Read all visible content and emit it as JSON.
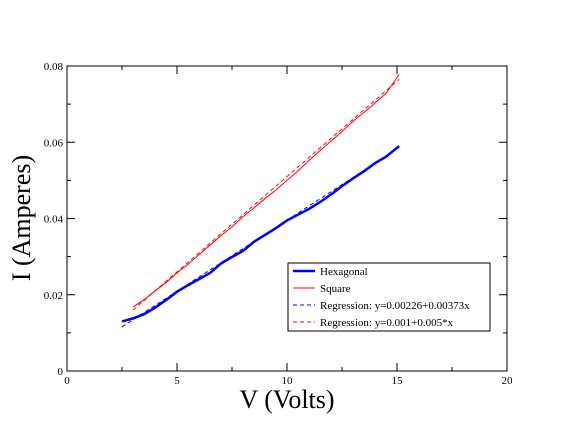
{
  "chart_data": {
    "type": "line",
    "title": "",
    "xlabel": "V (Volts)",
    "ylabel": "I (Amperes)",
    "xlim": [
      0,
      20
    ],
    "ylim": [
      0,
      0.08
    ],
    "x_ticks": [
      0,
      5,
      10,
      15,
      20
    ],
    "x_tick_labels": [
      "0",
      "5",
      "10",
      "15",
      "20"
    ],
    "y_ticks": [
      0,
      0.02,
      0.04,
      0.06,
      0.08
    ],
    "y_tick_labels": [
      "0",
      "0.02",
      "0.04",
      "0.06",
      "0.08"
    ],
    "grid": false,
    "legend_position": "lower-right",
    "series": [
      {
        "name": "Hexagonal",
        "style": "solid",
        "color": "#0000ff",
        "points": [
          [
            2.5,
            0.013
          ],
          [
            3,
            0.0138
          ],
          [
            3.5,
            0.0149
          ],
          [
            4,
            0.0166
          ],
          [
            4.5,
            0.0186
          ],
          [
            5,
            0.0208
          ],
          [
            5.5,
            0.0225
          ],
          [
            6,
            0.0241
          ],
          [
            6.5,
            0.0257
          ],
          [
            7,
            0.0282
          ],
          [
            7.5,
            0.0299
          ],
          [
            8,
            0.0315
          ],
          [
            8.5,
            0.0339
          ],
          [
            9,
            0.0357
          ],
          [
            9.5,
            0.0375
          ],
          [
            10,
            0.0395
          ],
          [
            10.5,
            0.041
          ],
          [
            11,
            0.0425
          ],
          [
            11.5,
            0.0443
          ],
          [
            12,
            0.0463
          ],
          [
            12.5,
            0.0485
          ],
          [
            13,
            0.0505
          ],
          [
            13.5,
            0.0524
          ],
          [
            14,
            0.0545
          ],
          [
            14.5,
            0.0562
          ],
          [
            15.1,
            0.059
          ]
        ]
      },
      {
        "name": "Square",
        "style": "solid",
        "color": "#ff0000",
        "points": [
          [
            3,
            0.0168
          ],
          [
            3.5,
            0.0187
          ],
          [
            4,
            0.021
          ],
          [
            4.5,
            0.0232
          ],
          [
            5,
            0.0257
          ],
          [
            5.5,
            0.028
          ],
          [
            6,
            0.0305
          ],
          [
            6.5,
            0.033
          ],
          [
            7,
            0.0355
          ],
          [
            7.5,
            0.0378
          ],
          [
            8,
            0.0405
          ],
          [
            8.5,
            0.0428
          ],
          [
            9,
            0.0452
          ],
          [
            9.5,
            0.0475
          ],
          [
            10,
            0.05
          ],
          [
            10.5,
            0.0525
          ],
          [
            11,
            0.0552
          ],
          [
            11.5,
            0.0578
          ],
          [
            12,
            0.0603
          ],
          [
            12.5,
            0.0628
          ],
          [
            13,
            0.0655
          ],
          [
            13.5,
            0.0678
          ],
          [
            14,
            0.0703
          ],
          [
            14.5,
            0.0728
          ],
          [
            15.1,
            0.0778
          ]
        ]
      },
      {
        "name": "Regression: y=0.00226+0.00373x",
        "style": "dashed",
        "color": "#0000ff",
        "intercept": 0.00226,
        "slope": 0.00373,
        "x_range": [
          2.5,
          15.1
        ]
      },
      {
        "name": "Regression: y=0.001+0.005*x",
        "style": "dashed",
        "color": "#ff0000",
        "intercept": 0.001,
        "slope": 0.005,
        "x_range": [
          3,
          15.1
        ]
      }
    ]
  }
}
